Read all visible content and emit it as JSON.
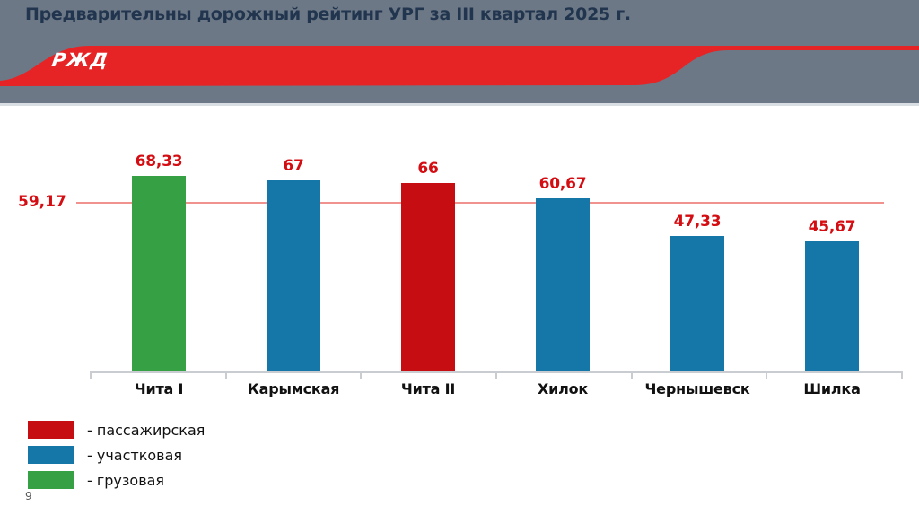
{
  "slide": {
    "title": "Предварительны дорожный рейтинг УРГ за III квартал 2025 г.",
    "logo_text": "РЖД",
    "page_number": "9"
  },
  "colors": {
    "header_gray": "#6C7886",
    "band_red": "#E62426",
    "bar_red": "#C50D12",
    "bar_blue": "#1577A7",
    "bar_green": "#35A044",
    "value_label_red": "#D40D12",
    "reference_line": "#F0938E",
    "axis_gray": "#C9CDD1"
  },
  "chart_data": {
    "type": "bar",
    "title": "Предварительны дорожный рейтинг УРГ за III квартал 2025 г.",
    "categories": [
      "Чита I",
      "Карымская",
      "Чита II",
      "Хилок",
      "Чернышевск",
      "Шилка"
    ],
    "values": [
      68.33,
      67,
      66,
      60.67,
      47.33,
      45.67
    ],
    "value_labels": [
      "68,33",
      "67",
      "66",
      "60,67",
      "47,33",
      "45,67"
    ],
    "bar_colors": [
      "green",
      "blue",
      "red",
      "blue",
      "blue",
      "blue"
    ],
    "reference_line": {
      "value": 59.17,
      "label": "59,17"
    },
    "xlabel": "",
    "ylabel": "",
    "ylim": [
      0,
      70
    ],
    "grid": false,
    "legend_position": "bottom-left",
    "legend": [
      {
        "color": "red",
        "label": "- пассажирская"
      },
      {
        "color": "blue",
        "label": "- участковая"
      },
      {
        "color": "green",
        "label": "- грузовая"
      }
    ]
  }
}
